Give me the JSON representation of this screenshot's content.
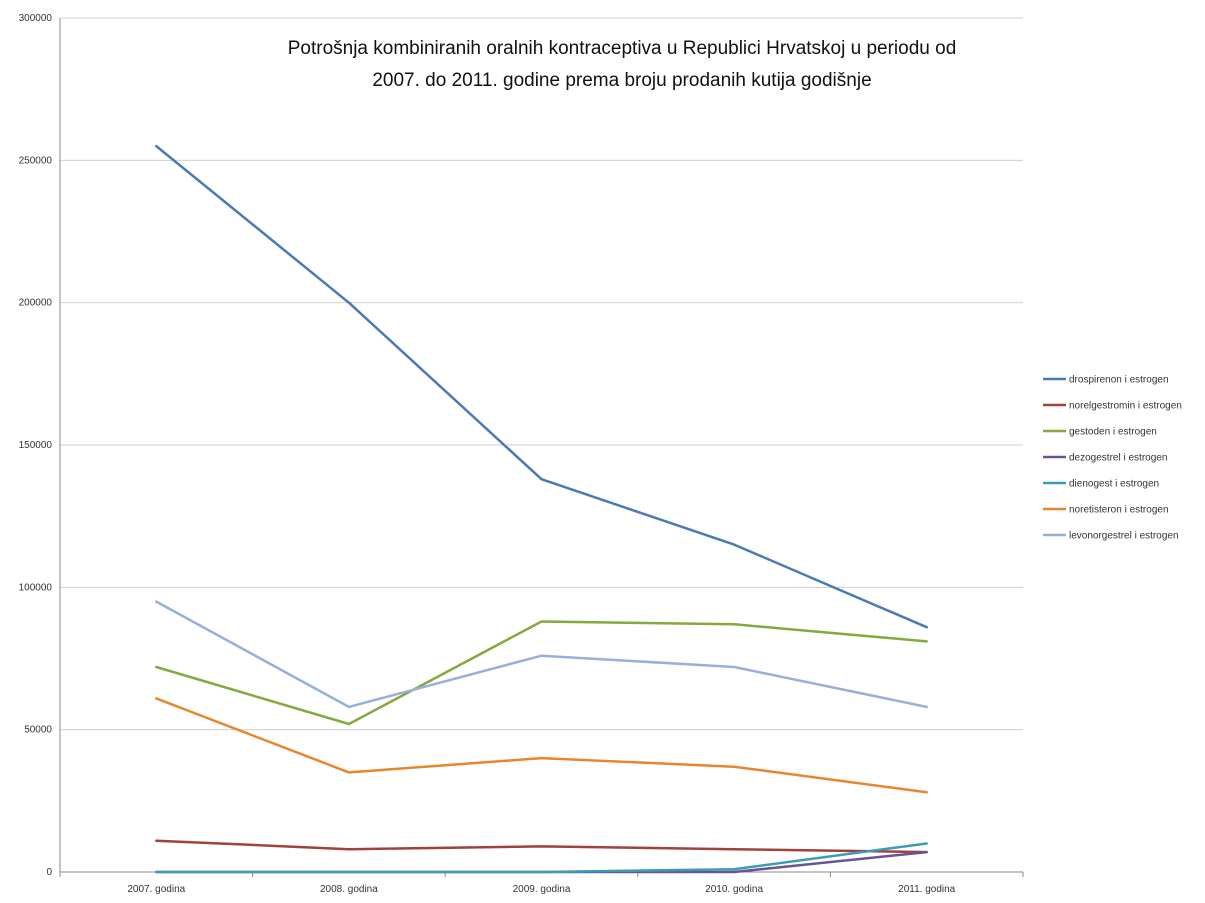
{
  "chart_data": {
    "type": "line",
    "title_lines": [
      "Potrošnja kombiniranih oralnih kontraceptiva u Republici Hrvatskoj u periodu od",
      "2007. do 2011. godine prema broju prodanih kutija godišnje"
    ],
    "xlabel": "",
    "ylabel": "",
    "categories": [
      "2007. godina",
      "2008. godina",
      "2009. godina",
      "2010. godina",
      "2011. godina"
    ],
    "ylim": [
      0,
      300000
    ],
    "yticks": [
      0,
      50000,
      100000,
      150000,
      200000,
      250000,
      300000
    ],
    "grid": true,
    "legend_position": "right",
    "series": [
      {
        "name": "drospirenon i estrogen",
        "color": "#4a7ab5",
        "values": [
          255000,
          200000,
          138000,
          115000,
          86000
        ]
      },
      {
        "name": "norelgestromin i estrogen",
        "color": "#a0413c",
        "values": [
          11000,
          8000,
          9000,
          8000,
          7000
        ]
      },
      {
        "name": "gestoden i estrogen",
        "color": "#86a83e",
        "values": [
          72000,
          52000,
          88000,
          87000,
          81000
        ]
      },
      {
        "name": "dezogestrel i estrogen",
        "color": "#6a5294",
        "values": [
          0,
          0,
          0,
          0,
          7000
        ]
      },
      {
        "name": "dienogest i estrogen",
        "color": "#3c9cb5",
        "values": [
          0,
          0,
          0,
          1000,
          10000
        ]
      },
      {
        "name": "noretisteron i estrogen",
        "color": "#e8862e",
        "values": [
          61000,
          35000,
          40000,
          37000,
          28000
        ]
      },
      {
        "name": "levonorgestrel i estrogen",
        "color": "#98afd8",
        "values": [
          95000,
          58000,
          76000,
          72000,
          58000
        ]
      }
    ]
  }
}
